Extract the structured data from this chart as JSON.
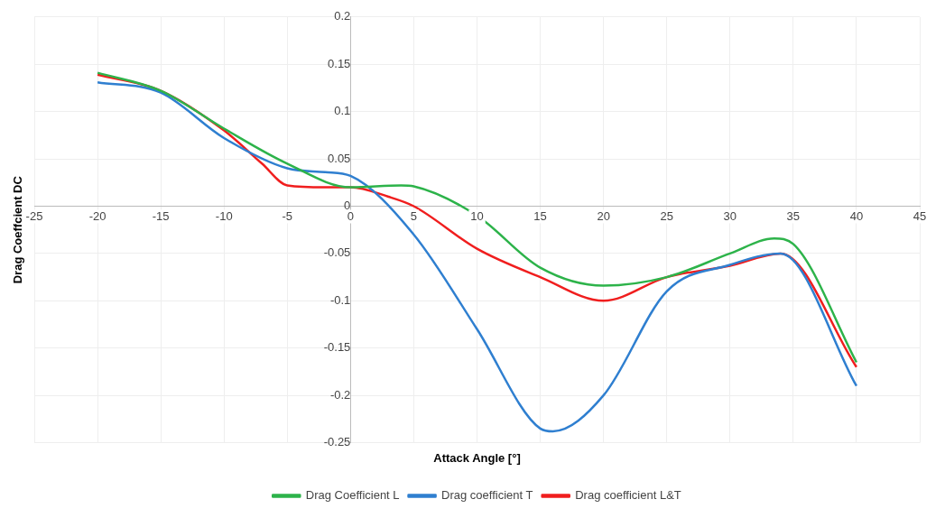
{
  "chart_data": {
    "type": "line",
    "xlabel": "Attack Angle [°]",
    "ylabel": "Drag Coeffcient DC",
    "xlim": [
      -25,
      45
    ],
    "xticks": [
      -25,
      -20,
      -15,
      -10,
      -5,
      0,
      5,
      10,
      15,
      20,
      25,
      30,
      35,
      40,
      45
    ],
    "ylim": [
      -0.25,
      0.2
    ],
    "yticks": [
      -0.25,
      -0.2,
      -0.15,
      -0.1,
      -0.05,
      0,
      0.05,
      0.1,
      0.15,
      0.2
    ],
    "grid": true,
    "legend": "bottom",
    "marker": "none",
    "line_style": "solid",
    "series": [
      {
        "name": "Drag Coefficient L",
        "color": "#2db34a",
        "x": [
          -20,
          -15,
          -10,
          -5,
          0,
          4,
          5,
          10,
          15,
          20,
          25,
          30,
          33.5,
          35,
          40
        ],
        "values": [
          0.141,
          0.122,
          0.082,
          0.045,
          0.02,
          0.022,
          0.021,
          -0.01,
          -0.065,
          -0.084,
          -0.075,
          -0.05,
          -0.034,
          -0.04,
          -0.165
        ]
      },
      {
        "name": "Drag coefficient T",
        "color": "#2f7fd0",
        "x": [
          -20,
          -15,
          -10,
          -5,
          -2,
          0,
          5,
          10,
          15,
          16,
          20,
          25,
          30,
          34,
          40
        ],
        "values": [
          0.131,
          0.12,
          0.072,
          0.04,
          0.036,
          0.032,
          -0.03,
          -0.13,
          -0.235,
          -0.238,
          -0.2,
          -0.09,
          -0.062,
          -0.05,
          -0.19
        ]
      },
      {
        "name": "Drag coefficient L&T",
        "color": "#f01e1e",
        "x": [
          -20,
          -15,
          -10,
          -7,
          -5,
          -2,
          0,
          3,
          5,
          10,
          15,
          20,
          25,
          30,
          34,
          40
        ],
        "values": [
          0.139,
          0.122,
          0.08,
          0.045,
          0.022,
          0.02,
          0.02,
          0.01,
          0.0,
          -0.045,
          -0.075,
          -0.1,
          -0.075,
          -0.063,
          -0.05,
          -0.17
        ]
      }
    ]
  }
}
